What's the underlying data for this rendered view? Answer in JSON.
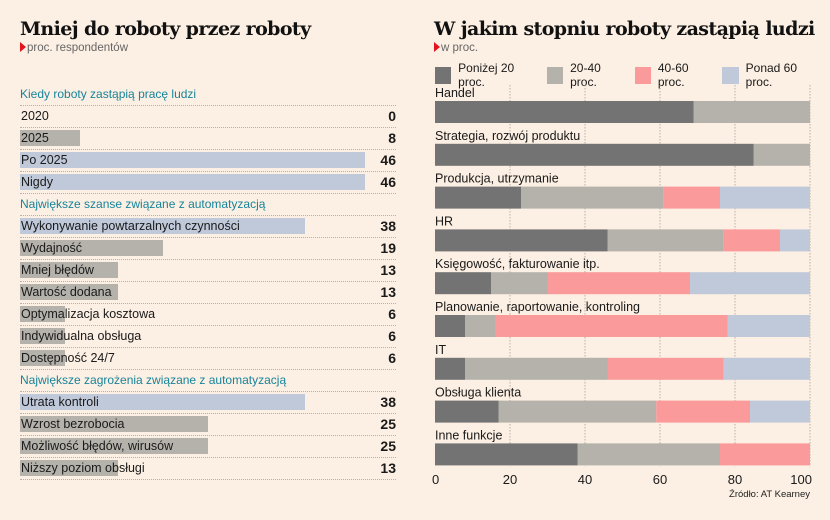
{
  "left": {
    "title": "Mniej do roboty przez roboty",
    "subtitle": "proc. respondentów",
    "max": 46,
    "sections": [
      {
        "heading": "Kiedy roboty zastąpią pracę ludzi",
        "rows": [
          {
            "label": "2020",
            "value": 0,
            "color": "gray"
          },
          {
            "label": "2025",
            "value": 8,
            "color": "gray"
          },
          {
            "label": "Po 2025",
            "value": 46,
            "color": "blue"
          },
          {
            "label": "Nigdy",
            "value": 46,
            "color": "blue"
          }
        ]
      },
      {
        "heading": "Największe szanse związane z automatyzacją",
        "rows": [
          {
            "label": "Wykonywanie powtarzalnych czynności",
            "value": 38,
            "color": "blue"
          },
          {
            "label": "Wydajność",
            "value": 19,
            "color": "gray"
          },
          {
            "label": "Mniej błędów",
            "value": 13,
            "color": "gray"
          },
          {
            "label": "Wartość dodana",
            "value": 13,
            "color": "gray"
          },
          {
            "label": "Optymalizacja kosztowa",
            "value": 6,
            "color": "gray"
          },
          {
            "label": "Indywidualna obsługa",
            "value": 6,
            "color": "gray"
          },
          {
            "label": "Dostępność 24/7",
            "value": 6,
            "color": "gray"
          }
        ]
      },
      {
        "heading": "Największe zagrożenia związane z automatyzacją",
        "rows": [
          {
            "label": "Utrata kontroli",
            "value": 38,
            "color": "blue"
          },
          {
            "label": "Wzrost bezrobocia",
            "value": 25,
            "color": "gray"
          },
          {
            "label": "Możliwość błędów, wirusów",
            "value": 25,
            "color": "gray"
          },
          {
            "label": "Niższy poziom obsługi",
            "value": 13,
            "color": "gray"
          }
        ]
      }
    ]
  },
  "right": {
    "title": "W jakim stopniu roboty zastąpią ludzi",
    "subtitle": "w proc.",
    "source": "Źródło: AT Kearney"
  },
  "colors": {
    "gray": "#b5b2ab",
    "blue": "#c0c9da",
    "dark": "#737373",
    "pink": "#fb9a9b",
    "accent_red": "#e3141e",
    "section_teal": "#17849a"
  },
  "chart_data": [
    {
      "type": "bar",
      "orientation": "horizontal",
      "title": "Mniej do roboty przez roboty",
      "subtitle": "proc. respondentów",
      "groups": [
        {
          "name": "Kiedy roboty zastąpią pracę ludzi",
          "categories": [
            "2020",
            "2025",
            "Po 2025",
            "Nigdy"
          ],
          "values": [
            0,
            8,
            46,
            46
          ]
        },
        {
          "name": "Największe szanse związane z automatyzacją",
          "categories": [
            "Wykonywanie powtarzalnych czynności",
            "Wydajność",
            "Mniej błędów",
            "Wartość dodana",
            "Optymalizacja kosztowa",
            "Indywidualna obsługa",
            "Dostępność 24/7"
          ],
          "values": [
            38,
            19,
            13,
            13,
            6,
            6,
            6
          ]
        },
        {
          "name": "Największe zagrożenia związane z automatyzacją",
          "categories": [
            "Utrata kontroli",
            "Wzrost bezrobocia",
            "Możliwość błędów, wirusów",
            "Niższy poziom obsługi"
          ],
          "values": [
            38,
            25,
            25,
            13
          ]
        }
      ]
    },
    {
      "type": "bar",
      "stacked": true,
      "orientation": "horizontal",
      "title": "W jakim stopniu roboty zastąpią ludzi",
      "subtitle": "w proc.",
      "categories": [
        "Handel",
        "Strategia, rozwój produktu",
        "Produkcja, utrzymanie",
        "HR",
        "Księgowość, fakturowanie itp.",
        "Planowanie, raportowanie, kontroling",
        "IT",
        "Obsługa klienta",
        "Inne funkcje"
      ],
      "series": [
        {
          "name": "Poniżej 20 proc.",
          "color": "#737373",
          "values": [
            69,
            85,
            23,
            46,
            15,
            8,
            8,
            17,
            38
          ]
        },
        {
          "name": "20-40 proc.",
          "color": "#b5b2ab",
          "values": [
            31,
            15,
            38,
            31,
            15,
            8,
            38,
            42,
            38
          ]
        },
        {
          "name": "40-60 proc.",
          "color": "#fb9a9b",
          "values": [
            0,
            0,
            15,
            15,
            38,
            62,
            31,
            25,
            24
          ]
        },
        {
          "name": "Ponad 60 proc.",
          "color": "#c0c9da",
          "values": [
            0,
            0,
            24,
            8,
            32,
            22,
            23,
            16,
            0
          ]
        }
      ],
      "xlim": [
        0,
        100
      ],
      "xticks": [
        0,
        20,
        40,
        60,
        80,
        100
      ],
      "grid": true,
      "legend": "top",
      "source": "Źródło: AT Kearney"
    }
  ]
}
